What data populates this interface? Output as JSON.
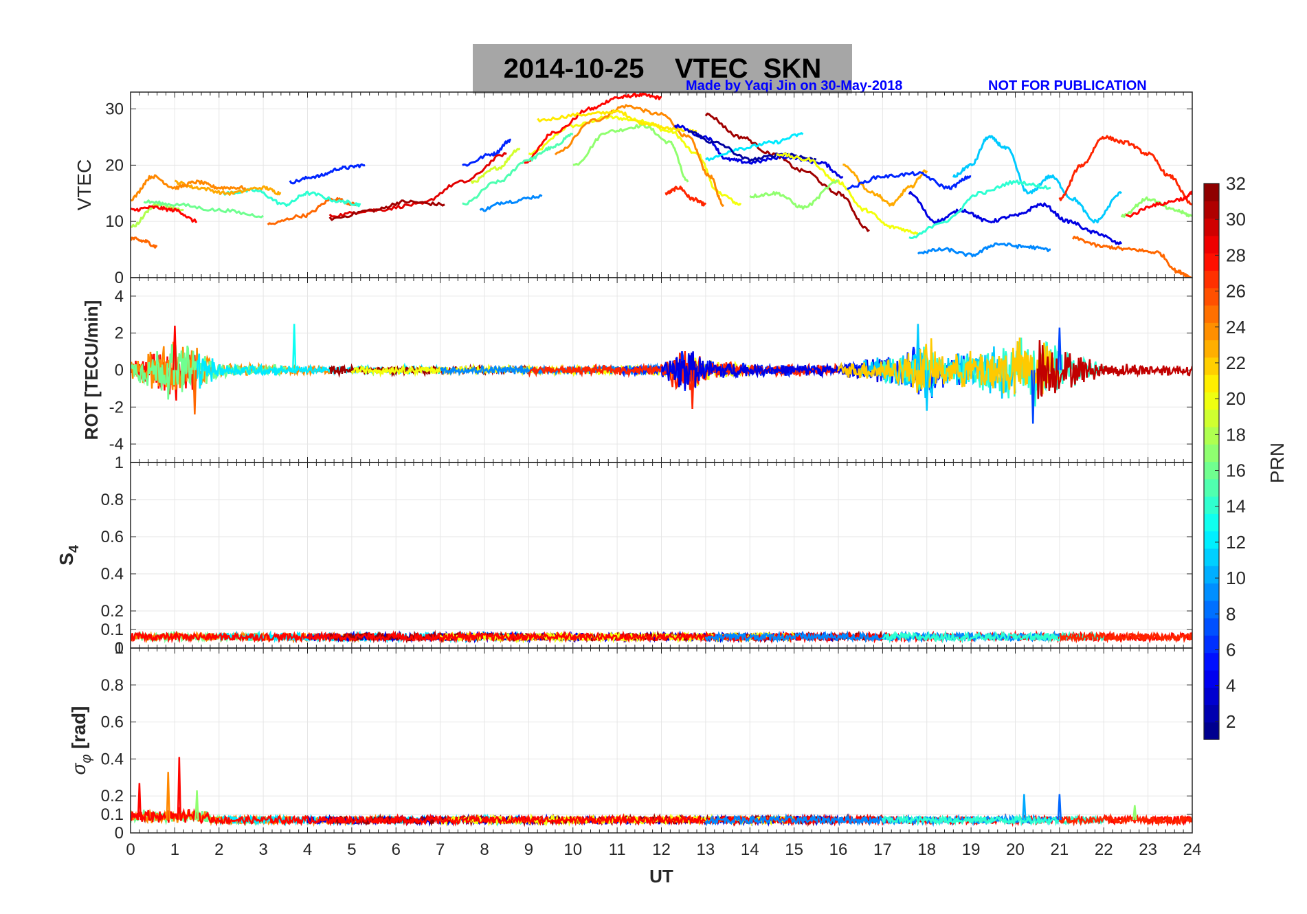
{
  "title": {
    "date": "2014-10-25",
    "text": "VTEC  SKN"
  },
  "credits": {
    "author": "Made by Yaqi Jin on 30-May-2018",
    "notice": "NOT FOR PUBLICATION"
  },
  "colorbar": {
    "label": "PRN",
    "ticks": [
      2,
      4,
      6,
      8,
      10,
      12,
      14,
      16,
      18,
      20,
      22,
      24,
      26,
      28,
      30,
      32
    ],
    "range": [
      1,
      32
    ],
    "colormap": "jet"
  },
  "chart_data": [
    {
      "type": "line",
      "panel": "vtec",
      "ylabel": "VTEC",
      "xlim": [
        0,
        24
      ],
      "ylim": [
        0,
        33
      ],
      "yticks": [
        "0",
        "10",
        "20",
        "30"
      ],
      "series": [
        {
          "prn": 20,
          "x": [
            9.0,
            10.0,
            10.8,
            11.5,
            12.2,
            12.8,
            13.3,
            13.8
          ],
          "y": [
            22,
            27,
            28.5,
            28,
            26,
            22,
            15,
            13
          ]
        },
        {
          "prn": 28,
          "x": [
            8.9,
            9.6,
            10.4,
            11.0,
            11.5,
            12.0
          ],
          "y": [
            20.5,
            26,
            30,
            32,
            32.5,
            32
          ]
        },
        {
          "prn": 24,
          "x": [
            9.6,
            10.5,
            11.2,
            12.0,
            12.6,
            13.1,
            13.4
          ],
          "y": [
            22,
            28,
            30.5,
            29,
            25,
            18,
            13
          ]
        },
        {
          "prn": 17,
          "x": [
            10.0,
            10.8,
            11.6,
            12.2,
            12.6
          ],
          "y": [
            20,
            26,
            27,
            24,
            17
          ]
        },
        {
          "prn": 21,
          "x": [
            9.2,
            10.2,
            11.0,
            11.6,
            12.2,
            12.8
          ],
          "y": [
            28,
            29,
            29.5,
            27.5,
            26.5,
            26
          ]
        },
        {
          "prn": 27,
          "x": [
            12.1,
            12.4,
            12.7,
            13.0
          ],
          "y": [
            15,
            16,
            14,
            13
          ]
        },
        {
          "prn": 15,
          "x": [
            7.5,
            8.3,
            9.0,
            9.5,
            10.0
          ],
          "y": [
            13,
            17,
            21,
            23,
            25.5
          ]
        },
        {
          "prn": 19,
          "x": [
            7.7,
            8.3,
            8.8
          ],
          "y": [
            17,
            19.5,
            23
          ]
        },
        {
          "prn": 6,
          "x": [
            7.5,
            8.2,
            8.6
          ],
          "y": [
            20,
            22,
            24.5
          ]
        },
        {
          "prn": 9,
          "x": [
            7.9,
            8.5,
            9.3
          ],
          "y": [
            12,
            13.5,
            14.5
          ]
        },
        {
          "prn": 6,
          "x": [
            3.6,
            4.2,
            4.8,
            5.3
          ],
          "y": [
            17,
            18,
            19.5,
            20
          ]
        },
        {
          "prn": 29,
          "x": [
            4.5,
            5.5,
            6.5,
            7.5,
            8.5
          ],
          "y": [
            11,
            12,
            13,
            17,
            22
          ]
        },
        {
          "prn": 31,
          "x": [
            4.5,
            5.5,
            6.2,
            7.1
          ],
          "y": [
            10.5,
            12,
            13.5,
            13
          ]
        },
        {
          "prn": 25,
          "x": [
            3.1,
            3.9,
            4.6,
            5.1
          ],
          "y": [
            9.5,
            11,
            14,
            13
          ]
        },
        {
          "prn": 14,
          "x": [
            2.1,
            2.8,
            3.5,
            4.0,
            4.8,
            5.2
          ],
          "y": [
            15,
            15.5,
            13,
            15,
            13.5,
            13
          ]
        },
        {
          "prn": 23,
          "x": [
            1.0,
            1.5,
            2.2,
            3.0,
            3.4
          ],
          "y": [
            17,
            16,
            15,
            16,
            15
          ]
        },
        {
          "prn": 24,
          "x": [
            0.0,
            0.5,
            1.0,
            1.5,
            2.0,
            2.6
          ],
          "y": [
            14,
            18,
            16,
            17,
            16,
            16
          ]
        },
        {
          "prn": 18,
          "x": [
            0.0,
            0.6,
            1.2
          ],
          "y": [
            9,
            13,
            12
          ]
        },
        {
          "prn": 28,
          "x": [
            0.0,
            0.5,
            1.0,
            1.5
          ],
          "y": [
            12,
            12.5,
            12,
            10
          ]
        },
        {
          "prn": 25,
          "x": [
            0.0,
            0.3,
            0.6
          ],
          "y": [
            7,
            6.5,
            5.5
          ]
        },
        {
          "prn": 16,
          "x": [
            0.3,
            1.0,
            2.0,
            3.0
          ],
          "y": [
            13.5,
            13,
            12,
            11
          ]
        },
        {
          "prn": 31,
          "x": [
            13.0,
            13.8,
            14.5,
            15.2,
            16.0,
            16.7
          ],
          "y": [
            29,
            25,
            22,
            19,
            15,
            8.5
          ]
        },
        {
          "prn": 4,
          "x": [
            12.3,
            13.0,
            13.5,
            14.0,
            14.8,
            15.6,
            16.1
          ],
          "y": [
            27,
            25,
            21,
            20.5,
            21.5,
            20.5,
            18
          ]
        },
        {
          "prn": 12,
          "x": [
            13.0,
            13.8,
            14.5,
            15.2
          ],
          "y": [
            21,
            23,
            24,
            25.5
          ]
        },
        {
          "prn": 2,
          "x": [
            12.6,
            13.2,
            14.0,
            14.8,
            15.5
          ],
          "y": [
            26,
            24,
            21,
            22,
            21
          ]
        },
        {
          "prn": 20,
          "x": [
            14.6,
            15.3,
            16.0,
            16.6,
            17.2,
            17.8
          ],
          "y": [
            22,
            21,
            17,
            12,
            9,
            8
          ]
        },
        {
          "prn": 17,
          "x": [
            14.0,
            14.6,
            15.2,
            16.0
          ],
          "y": [
            14.5,
            15,
            12.5,
            17
          ]
        },
        {
          "prn": 23,
          "x": [
            16.1,
            16.8,
            17.2,
            17.6,
            18.0
          ],
          "y": [
            20,
            15,
            13,
            16,
            19
          ]
        },
        {
          "prn": 6,
          "x": [
            16.2,
            17.0,
            17.8,
            18.5,
            19.0
          ],
          "y": [
            16,
            18,
            18.5,
            16,
            18
          ]
        },
        {
          "prn": 4,
          "x": [
            17.6,
            18.2,
            18.8,
            19.4,
            20.0,
            20.6,
            21.2,
            21.8,
            22.4
          ],
          "y": [
            15,
            10,
            12,
            10,
            11,
            13,
            10,
            8,
            6
          ]
        },
        {
          "prn": 11,
          "x": [
            18.6,
            19.0,
            19.4,
            19.8,
            20.3,
            20.8,
            21.3,
            21.8,
            22.4
          ],
          "y": [
            18,
            20,
            25,
            23,
            15,
            18,
            14,
            10,
            15
          ]
        },
        {
          "prn": 9,
          "x": [
            17.8,
            18.4,
            19.0,
            19.6,
            20.2,
            20.8
          ],
          "y": [
            4.5,
            5,
            4,
            6,
            5.5,
            5
          ]
        },
        {
          "prn": 27,
          "x": [
            21.0,
            21.5,
            22.0,
            22.5,
            23.0,
            23.5,
            24.0
          ],
          "y": [
            14,
            20,
            25,
            24,
            22,
            18,
            13
          ]
        },
        {
          "prn": 25,
          "x": [
            21.3,
            22.0,
            22.6,
            23.2,
            23.7,
            24.0
          ],
          "y": [
            7,
            5.5,
            5,
            4.5,
            1,
            0
          ]
        },
        {
          "prn": 17,
          "x": [
            22.4,
            23.0,
            23.6,
            24.0
          ],
          "y": [
            11,
            14,
            12,
            11
          ]
        },
        {
          "prn": 28,
          "x": [
            22.5,
            23.2,
            23.8,
            24.0
          ],
          "y": [
            11,
            13,
            14,
            15
          ]
        },
        {
          "prn": 14,
          "x": [
            17.6,
            18.4,
            19.2,
            20.0,
            20.8
          ],
          "y": [
            7,
            10,
            15,
            17,
            16
          ]
        }
      ]
    },
    {
      "type": "line",
      "panel": "rot",
      "ylabel": "ROT [TECU/min]",
      "xlim": [
        0,
        24
      ],
      "ylim": [
        -5,
        5
      ],
      "yticks": [
        "-4",
        "-2",
        "0",
        "2",
        "4"
      ],
      "envelope": {
        "description": "noisy traces around 0 for all PRNs",
        "x": [
          0,
          0.5,
          1.0,
          1.5,
          2,
          4,
          6,
          8,
          10,
          12,
          12.5,
          13,
          14,
          16,
          17.5,
          18,
          18.5,
          19.5,
          20.5,
          21,
          22,
          24
        ],
        "amp": [
          0.6,
          1.5,
          2.3,
          1.6,
          0.5,
          0.3,
          0.3,
          0.3,
          0.3,
          0.4,
          1.8,
          0.8,
          0.4,
          0.4,
          1.2,
          2.3,
          1.0,
          1.8,
          2.6,
          1.6,
          0.5,
          0.4
        ]
      },
      "spikes": [
        {
          "x": 3.7,
          "y": 2.5,
          "prn": 13
        },
        {
          "x": 12.7,
          "y": -2.1,
          "prn": 27
        },
        {
          "x": 17.8,
          "y": 2.5,
          "prn": 11
        },
        {
          "x": 18.0,
          "y": -2.2,
          "prn": 11
        },
        {
          "x": 20.4,
          "y": -2.9,
          "prn": 7
        },
        {
          "x": 21.0,
          "y": 2.3,
          "prn": 7
        },
        {
          "x": 1.0,
          "y": 2.4,
          "prn": 28
        },
        {
          "x": 1.45,
          "y": -2.4,
          "prn": 25
        }
      ]
    },
    {
      "type": "line",
      "panel": "s4",
      "ylabel": "S4",
      "xlim": [
        0,
        24
      ],
      "ylim": [
        0,
        1
      ],
      "yticks": [
        "0",
        "0.1",
        "0.2",
        "0.4",
        "0.6",
        "0.8",
        "1"
      ],
      "baseline": 0.06,
      "noise": 0.02
    },
    {
      "type": "line",
      "panel": "sigma_phi",
      "ylabel": "σφ [rad]",
      "xlabel": "UT",
      "xlim": [
        0,
        24
      ],
      "ylim": [
        0,
        1
      ],
      "yticks": [
        "0",
        "0.1",
        "0.2",
        "0.4",
        "0.6",
        "0.8",
        "1"
      ],
      "xticks": [
        "0",
        "1",
        "2",
        "3",
        "4",
        "5",
        "6",
        "7",
        "8",
        "9",
        "10",
        "11",
        "12",
        "13",
        "14",
        "15",
        "16",
        "17",
        "18",
        "19",
        "20",
        "21",
        "22",
        "23",
        "24"
      ],
      "baseline": 0.07,
      "noise": 0.02,
      "spikes": [
        {
          "x": 0.2,
          "y": 0.27,
          "prn": 28
        },
        {
          "x": 0.85,
          "y": 0.33,
          "prn": 24
        },
        {
          "x": 1.1,
          "y": 0.41,
          "prn": 28
        },
        {
          "x": 1.5,
          "y": 0.23,
          "prn": 17
        },
        {
          "x": 20.2,
          "y": 0.21,
          "prn": 10
        },
        {
          "x": 21.0,
          "y": 0.21,
          "prn": 8
        },
        {
          "x": 22.7,
          "y": 0.15,
          "prn": 17
        }
      ]
    }
  ]
}
